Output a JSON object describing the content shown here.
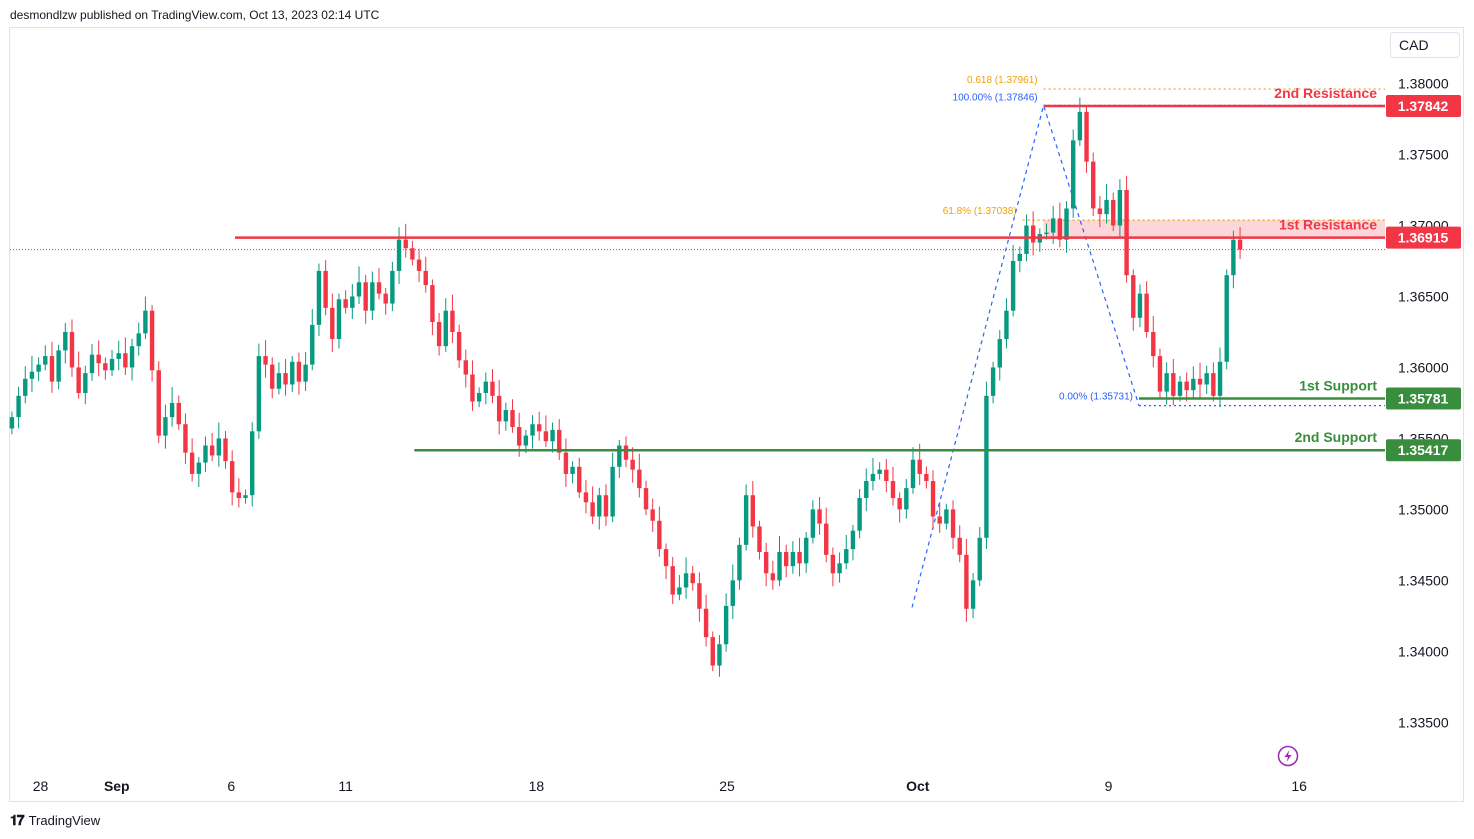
{
  "publisher": "desmondlzw published on TradingView.com, Oct 13, 2023 02:14 UTC",
  "currency": "CAD",
  "footer_brand": "TradingView",
  "colors": {
    "up": "#089981",
    "down": "#f23645",
    "resistance": "#f23645",
    "support": "#388e3c",
    "fib": "#f0a008",
    "fib_blue": "#2962ff"
  },
  "chart_data": {
    "type": "candlestick",
    "y_ticks": [
      "1.38000",
      "1.37500",
      "1.37000",
      "1.36500",
      "1.36000",
      "1.35500",
      "1.35000",
      "1.34500",
      "1.34000",
      "1.33500"
    ],
    "ylim": [
      1.3315,
      1.3818
    ],
    "x_ticks": [
      {
        "label": "28",
        "day": -1
      },
      {
        "label": "Sep",
        "day": 3
      },
      {
        "label": "6",
        "day": 9
      },
      {
        "label": "11",
        "day": 15
      },
      {
        "label": "18",
        "day": 25
      },
      {
        "label": "25",
        "day": 35
      },
      {
        "label": "Oct",
        "day": 45
      },
      {
        "label": "9",
        "day": 55
      },
      {
        "label": "16",
        "day": 65
      }
    ],
    "x_day_range": [
      -2.6,
      69.5
    ],
    "price_levels": [
      {
        "label": "2nd Resistance",
        "value": 1.37842,
        "value_label": "1.37842",
        "kind": "resistance",
        "start_day": 51.6
      },
      {
        "label": "1st Resistance",
        "value": 1.36915,
        "value_label": "1.36915",
        "kind": "resistance",
        "start_day": 9.2
      },
      {
        "label": "1st Support",
        "value": 1.35781,
        "value_label": "1.35781",
        "kind": "support",
        "start_day": 56.6
      },
      {
        "label": "2nd Support",
        "value": 1.35417,
        "value_label": "1.35417",
        "kind": "support",
        "start_day": 18.6
      }
    ],
    "fib_labels": [
      {
        "text": "0.618 (1.37961)",
        "value": 1.37961,
        "day": 51.6,
        "style": "orange"
      },
      {
        "text": "100.00% (1.37846)",
        "value": 1.37846,
        "day": 51.6,
        "style": "blue"
      },
      {
        "text": "61.8% (1.37038)",
        "value": 1.37038,
        "day": 50.5,
        "style": "orange"
      },
      {
        "text": "0.00% (1.35731)",
        "value": 1.35731,
        "day": 56.6,
        "style": "blue"
      }
    ],
    "resistance_zone": {
      "from": 1.36915,
      "to": 1.37038,
      "start_day": 51.6
    },
    "last_price": 1.3683,
    "candle_groups": [
      {
        "day_start": -2.5,
        "closes": [
          1.3565,
          1.358,
          1.3592,
          1.3597,
          1.3602,
          1.3608,
          1.359,
          1.3612,
          1.3625,
          1.36,
          1.3582,
          1.3596,
          1.3609,
          1.3603,
          1.3598,
          1.3606,
          1.361,
          1.36,
          1.3615,
          1.3624,
          1.364,
          1.3598,
          1.3552,
          1.3565,
          1.3575,
          1.356,
          1.354,
          1.3525,
          1.3533,
          1.3545,
          1.3538,
          1.355,
          1.3534,
          1.3512,
          1.3508,
          1.351,
          1.3555,
          1.3608,
          1.3602,
          1.3585,
          1.3596,
          1.3588,
          1.3604,
          1.359,
          1.3602,
          1.363,
          1.3668,
          1.3642,
          1.362,
          1.3648,
          1.3642,
          1.365,
          1.366,
          1.364,
          1.366,
          1.3652,
          1.3645,
          1.3668,
          1.369,
          1.3684,
          1.3676,
          1.3668,
          1.3658,
          1.3632,
          1.3615,
          1.364,
          1.3625,
          1.3605,
          1.3595,
          1.3576,
          1.3582,
          1.359,
          1.358,
          1.3562,
          1.357,
          1.3558,
          1.3545,
          1.3552,
          1.356,
          1.3555,
          1.3548,
          1.3556,
          1.354,
          1.3525,
          1.353,
          1.3512,
          1.3505,
          1.3495,
          1.351,
          1.3495,
          1.353,
          1.3545,
          1.3535,
          1.3528,
          1.3515,
          1.35,
          1.3492,
          1.3472,
          1.346,
          1.344,
          1.3445,
          1.3455,
          1.3448,
          1.343,
          1.341,
          1.339,
          1.3405,
          1.3432,
          1.345,
          1.3475,
          1.351,
          1.3488,
          1.347,
          1.3455,
          1.345,
          1.347,
          1.346,
          1.347,
          1.3462,
          1.348,
          1.35,
          1.349,
          1.3468,
          1.3455,
          1.3462,
          1.3472,
          1.3485,
          1.3508,
          1.352,
          1.3525,
          1.3528,
          1.352,
          1.3508,
          1.35,
          1.3515,
          1.3535,
          1.3525,
          1.352,
          1.3495,
          1.349,
          1.35,
          1.348,
          1.3468,
          1.343,
          1.345,
          1.348,
          1.358,
          1.36,
          1.362,
          1.364,
          1.3675,
          1.368,
          1.37,
          1.3688,
          1.3694,
          1.3695,
          1.3705,
          1.369,
          1.3712,
          1.376,
          1.378,
          1.3745,
          1.3712,
          1.3708,
          1.3718,
          1.37,
          1.3725,
          1.3665,
          1.3635,
          1.3652,
          1.3625,
          1.3608,
          1.3583,
          1.3596,
          1.358,
          1.359,
          1.3584,
          1.3592,
          1.3588,
          1.3596,
          1.358,
          1.3604,
          1.3665,
          1.369,
          1.3683
        ]
      },
      {
        "day_start": -2.5,
        "opens_note": "open equals previous close"
      }
    ]
  }
}
